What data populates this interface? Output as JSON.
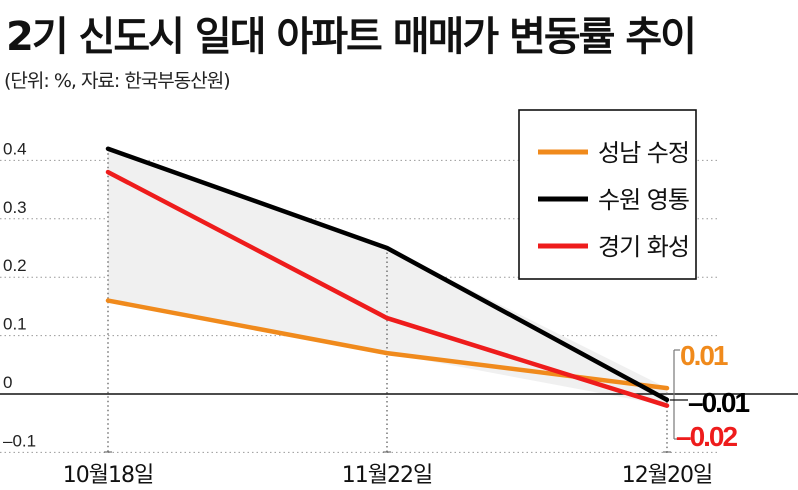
{
  "header": {
    "title": "2기 신도시 일대 아파트 매매가 변동률 추이",
    "subtitle": "(단위: %, 자료: 한국부동산원)"
  },
  "chart_data": {
    "type": "line",
    "title": "2기 신도시 일대 아파트 매매가 변동률 추이",
    "subtitle": "(단위: %, 자료: 한국부동산원)",
    "categories": [
      "10월18일",
      "11월22일",
      "12월20일"
    ],
    "x_positions": [
      0,
      1,
      2
    ],
    "yticks": [
      0.4,
      0.3,
      0.2,
      0.1,
      0,
      -0.1
    ],
    "ytick_labels": [
      "0.4",
      "0.3",
      "0.2",
      "0.1",
      "0",
      "–0.1"
    ],
    "ylim": [
      -0.12,
      0.45
    ],
    "grid": "horizontal-dotted",
    "legend_position": "top-right",
    "series": [
      {
        "name": "성남 수정",
        "color": "#f08a1c",
        "values": [
          0.16,
          0.07,
          0.01
        ],
        "end_label": "0.01"
      },
      {
        "name": "수원 영통",
        "color": "#000000",
        "values": [
          0.42,
          0.25,
          -0.01
        ],
        "end_label": "–0.01"
      },
      {
        "name": "경기 화성",
        "color": "#ee1c1c",
        "values": [
          0.38,
          0.13,
          -0.02
        ],
        "end_label": "–0.02"
      }
    ]
  }
}
